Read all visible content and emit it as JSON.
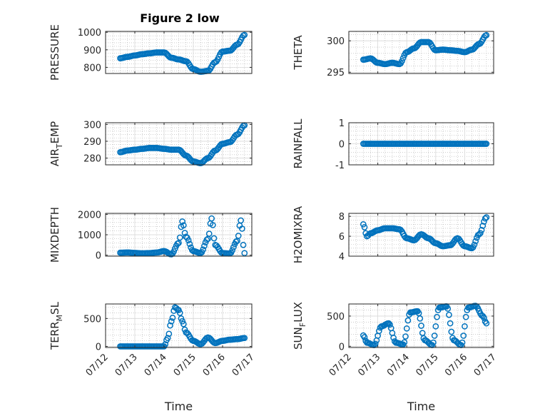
{
  "figure_title": "Figure 2 low",
  "colors": {
    "marker": "#0072BD",
    "axis": "#262626",
    "grid": "#b0b0b0"
  },
  "chart_data": [
    {
      "type": "scatter",
      "id": "pressure",
      "ylabel": "PRESSURE",
      "ylabel_sub": "",
      "ylim": [
        765,
        1005
      ],
      "yticks": [
        800,
        900,
        1000
      ],
      "xlabel": "",
      "x_ticks_shown": false,
      "x": [
        "07/12 12:00",
        "07/12 18:00",
        "07/13 00:00",
        "07/13 06:00",
        "07/13 12:00",
        "07/13 18:00",
        "07/14 00:00",
        "07/14 06:00",
        "07/14 12:00",
        "07/14 18:00",
        "07/15 00:00",
        "07/15 06:00",
        "07/15 12:00",
        "07/15 18:00",
        "07/16 00:00",
        "07/16 06:00",
        "07/16 12:00",
        "07/16 18:00"
      ],
      "y": [
        852,
        860,
        868,
        875,
        880,
        885,
        885,
        855,
        845,
        835,
        790,
        775,
        780,
        830,
        890,
        895,
        930,
        985
      ]
    },
    {
      "type": "scatter",
      "id": "theta",
      "ylabel": "THETA",
      "ylabel_sub": "",
      "ylim": [
        294.8,
        301.5
      ],
      "yticks": [
        295,
        300
      ],
      "xlabel": "",
      "x_ticks_shown": false,
      "x": [
        "07/12 12:00",
        "07/12 18:00",
        "07/13 00:00",
        "07/13 06:00",
        "07/13 12:00",
        "07/13 18:00",
        "07/14 00:00",
        "07/14 06:00",
        "07/14 12:00",
        "07/14 18:00",
        "07/15 00:00",
        "07/15 06:00",
        "07/15 12:00",
        "07/15 18:00",
        "07/16 00:00",
        "07/16 06:00",
        "07/16 12:00",
        "07/16 18:00"
      ],
      "y": [
        297.0,
        297.2,
        296.5,
        296.3,
        296.5,
        296.3,
        298.2,
        298.8,
        299.8,
        299.8,
        298.5,
        298.6,
        298.5,
        298.4,
        298.2,
        298.6,
        299.5,
        300.9
      ]
    },
    {
      "type": "scatter",
      "id": "air_temp",
      "ylabel": "AIR",
      "ylabel_sub": "T",
      "ylabel_suffix": "EMP",
      "ylim": [
        276,
        301
      ],
      "yticks": [
        280,
        290,
        300
      ],
      "xlabel": "",
      "x_ticks_shown": false,
      "x": [
        "07/12 12:00",
        "07/12 18:00",
        "07/13 00:00",
        "07/13 06:00",
        "07/13 12:00",
        "07/13 18:00",
        "07/14 00:00",
        "07/14 06:00",
        "07/14 12:00",
        "07/14 18:00",
        "07/15 00:00",
        "07/15 06:00",
        "07/15 12:00",
        "07/15 18:00",
        "07/16 00:00",
        "07/16 06:00",
        "07/16 12:00",
        "07/16 18:00"
      ],
      "y": [
        283.5,
        284.5,
        285.0,
        285.5,
        286.0,
        286.0,
        285.5,
        285.0,
        285.0,
        281.5,
        278.0,
        277.0,
        280.0,
        284.5,
        288.5,
        289.5,
        294.0,
        299.5
      ]
    },
    {
      "type": "scatter",
      "id": "rainfall",
      "ylabel": "RAINFALL",
      "ylabel_sub": "",
      "ylim": [
        -1,
        1
      ],
      "yticks": [
        -1,
        0,
        1
      ],
      "xlabel": "",
      "x_ticks_shown": false,
      "x": [
        "07/12 12:00",
        "07/13 00:00",
        "07/13 12:00",
        "07/14 00:00",
        "07/14 12:00",
        "07/15 00:00",
        "07/15 12:00",
        "07/16 00:00",
        "07/16 12:00",
        "07/16 18:00"
      ],
      "y": [
        0,
        0,
        0,
        0,
        0,
        0,
        0,
        0,
        0,
        0
      ]
    },
    {
      "type": "scatter",
      "id": "mixdepth",
      "ylabel": "MIXDEPTH",
      "ylabel_sub": "",
      "ylim": [
        -50,
        2050
      ],
      "yticks": [
        0,
        1000,
        2000
      ],
      "xlabel": "",
      "x_ticks_shown": false,
      "x": [
        "07/12 12:00",
        "07/12 18:00",
        "07/13 00:00",
        "07/13 06:00",
        "07/13 12:00",
        "07/13 18:00",
        "07/14 00:00",
        "07/14 06:00",
        "07/14 12:00",
        "07/14 15:00",
        "07/14 18:00",
        "07/15 00:00",
        "07/15 06:00",
        "07/15 12:00",
        "07/15 15:00",
        "07/15 18:00",
        "07/16 00:00",
        "07/16 06:00",
        "07/16 12:00",
        "07/16 15:00",
        "07/16 18:00"
      ],
      "y": [
        120,
        130,
        110,
        90,
        100,
        130,
        200,
        40,
        600,
        1650,
        900,
        200,
        100,
        800,
        1800,
        500,
        100,
        80,
        700,
        1700,
        100
      ]
    },
    {
      "type": "scatter",
      "id": "h2omixra",
      "ylabel": "H2OMIXRA",
      "ylabel_sub": "",
      "ylim": [
        4,
        8.3
      ],
      "yticks": [
        4,
        6,
        8
      ],
      "xlabel": "",
      "x_ticks_shown": false,
      "x": [
        "07/12 12:00",
        "07/12 15:00",
        "07/12 18:00",
        "07/13 00:00",
        "07/13 06:00",
        "07/13 12:00",
        "07/13 18:00",
        "07/14 00:00",
        "07/14 06:00",
        "07/14 12:00",
        "07/14 18:00",
        "07/15 00:00",
        "07/15 06:00",
        "07/15 12:00",
        "07/15 18:00",
        "07/16 00:00",
        "07/16 06:00",
        "07/16 12:00",
        "07/16 18:00"
      ],
      "y": [
        7.2,
        6.0,
        6.3,
        6.6,
        6.8,
        6.8,
        6.7,
        5.8,
        5.6,
        6.2,
        5.8,
        5.3,
        5.0,
        5.1,
        5.8,
        5.0,
        4.8,
        6.2,
        7.9
      ]
    },
    {
      "type": "scatter",
      "id": "terr_msl",
      "ylabel": "TERR",
      "ylabel_sub": "M",
      "ylabel_suffix": "SL",
      "ylim": [
        -20,
        760
      ],
      "yticks": [
        0,
        500
      ],
      "xlabel": "Time",
      "x_ticks_shown": true,
      "x": [
        "07/12 12:00",
        "07/12 18:00",
        "07/13 00:00",
        "07/13 06:00",
        "07/13 12:00",
        "07/13 18:00",
        "07/14 00:00",
        "07/14 03:00",
        "07/14 06:00",
        "07/14 09:00",
        "07/14 12:00",
        "07/14 15:00",
        "07/14 18:00",
        "07/15 00:00",
        "07/15 06:00",
        "07/15 12:00",
        "07/15 18:00",
        "07/16 00:00",
        "07/16 06:00",
        "07/16 12:00",
        "07/16 18:00"
      ],
      "y": [
        0,
        0,
        0,
        0,
        0,
        0,
        0,
        150,
        450,
        700,
        650,
        450,
        250,
        100,
        40,
        160,
        60,
        100,
        120,
        130,
        150
      ]
    },
    {
      "type": "scatter",
      "id": "sun_flux",
      "ylabel": "SUN",
      "ylabel_sub": "F",
      "ylabel_suffix": "LUX",
      "ylim": [
        -20,
        700
      ],
      "yticks": [
        0,
        500
      ],
      "xlabel": "Time",
      "x_ticks_shown": true,
      "x": [
        "07/12 12:00",
        "07/12 15:00",
        "07/12 21:00",
        "07/13 03:00",
        "07/13 09:00",
        "07/13 15:00",
        "07/13 21:00",
        "07/14 03:00",
        "07/14 09:00",
        "07/14 15:00",
        "07/14 21:00",
        "07/15 03:00",
        "07/15 09:00",
        "07/15 15:00",
        "07/15 21:00",
        "07/16 03:00",
        "07/16 09:00",
        "07/16 15:00",
        "07/16 18:00"
      ],
      "y": [
        180,
        60,
        20,
        330,
        380,
        60,
        30,
        560,
        580,
        100,
        20,
        640,
        660,
        100,
        20,
        640,
        670,
        500,
        380
      ]
    }
  ],
  "x_axis": {
    "ticks": [
      "07/12",
      "07/13",
      "07/14",
      "07/15",
      "07/16",
      "07/17"
    ],
    "range": [
      "07/12",
      "07/17"
    ]
  }
}
